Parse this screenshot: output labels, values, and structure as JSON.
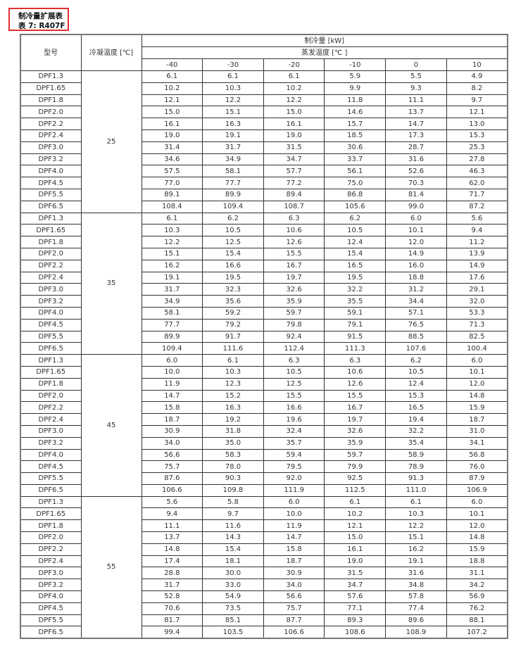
{
  "title": {
    "line1": "制冷量扩展表",
    "line2": "表 7: R407F"
  },
  "table": {
    "header": {
      "model": "型号",
      "condensing_temp": "冷凝温度 [℃]",
      "capacity": "制冷量 [kW]",
      "evaporating_temp": "蒸发温度 [℃ ]",
      "evap_columns": [
        "-40",
        "-30",
        "-20",
        "-10",
        "0",
        "10"
      ]
    },
    "groups": [
      {
        "condensing": "25",
        "rows": [
          {
            "model": "DPF1.3",
            "values": [
              "6.1",
              "6.1",
              "6.1",
              "5.9",
              "5.5",
              "4.9"
            ]
          },
          {
            "model": "DPF1.65",
            "values": [
              "10.2",
              "10.3",
              "10.2",
              "9.9",
              "9.3",
              "8.2"
            ]
          },
          {
            "model": "DPF1.8",
            "values": [
              "12.1",
              "12.2",
              "12.2",
              "11.8",
              "11.1",
              "9.7"
            ]
          },
          {
            "model": "DPF2.0",
            "values": [
              "15.0",
              "15.1",
              "15.0",
              "14.6",
              "13.7",
              "12.1"
            ]
          },
          {
            "model": "DPF2.2",
            "values": [
              "16.1",
              "16.3",
              "16.1",
              "15.7",
              "14.7",
              "13.0"
            ]
          },
          {
            "model": "DPF2.4",
            "values": [
              "19.0",
              "19.1",
              "19.0",
              "18.5",
              "17.3",
              "15.3"
            ]
          },
          {
            "model": "DPF3.0",
            "values": [
              "31.4",
              "31.7",
              "31.5",
              "30.6",
              "28.7",
              "25.3"
            ]
          },
          {
            "model": "DPF3.2",
            "values": [
              "34.6",
              "34.9",
              "34.7",
              "33.7",
              "31.6",
              "27.8"
            ]
          },
          {
            "model": "DPF4.0",
            "values": [
              "57.5",
              "58.1",
              "57.7",
              "56.1",
              "52.6",
              "46.3"
            ]
          },
          {
            "model": "DPF4.5",
            "values": [
              "77.0",
              "77.7",
              "77.2",
              "75.0",
              "70.3",
              "62.0"
            ]
          },
          {
            "model": "DPF5.5",
            "values": [
              "89.1",
              "89.9",
              "89.4",
              "86.8",
              "81.4",
              "71.7"
            ]
          },
          {
            "model": "DPF6.5",
            "values": [
              "108.4",
              "109.4",
              "108.7",
              "105.6",
              "99.0",
              "87.2"
            ]
          }
        ]
      },
      {
        "condensing": "35",
        "rows": [
          {
            "model": "DPF1.3",
            "values": [
              "6.1",
              "6.2",
              "6.3",
              "6.2",
              "6.0",
              "5.6"
            ]
          },
          {
            "model": "DPF1.65",
            "values": [
              "10.3",
              "10.5",
              "10.6",
              "10.5",
              "10.1",
              "9.4"
            ]
          },
          {
            "model": "DPF1.8",
            "values": [
              "12.2",
              "12.5",
              "12.6",
              "12.4",
              "12.0",
              "11.2"
            ]
          },
          {
            "model": "DPF2.0",
            "values": [
              "15.1",
              "15.4",
              "15.5",
              "15.4",
              "14.9",
              "13.9"
            ]
          },
          {
            "model": "DPF2.2",
            "values": [
              "16.2",
              "16.6",
              "16.7",
              "16.5",
              "16.0",
              "14.9"
            ]
          },
          {
            "model": "DPF2.4",
            "values": [
              "19.1",
              "19.5",
              "19.7",
              "19.5",
              "18.8",
              "17.6"
            ]
          },
          {
            "model": "DPF3.0",
            "values": [
              "31.7",
              "32.3",
              "32.6",
              "32.2",
              "31.2",
              "29.1"
            ]
          },
          {
            "model": "DPF3.2",
            "values": [
              "34.9",
              "35.6",
              "35.9",
              "35.5",
              "34.4",
              "32.0"
            ]
          },
          {
            "model": "DPF4.0",
            "values": [
              "58.1",
              "59.2",
              "59.7",
              "59.1",
              "57.1",
              "53.3"
            ]
          },
          {
            "model": "DPF4.5",
            "values": [
              "77.7",
              "79.2",
              "79.8",
              "79.1",
              "76.5",
              "71.3"
            ]
          },
          {
            "model": "DPF5.5",
            "values": [
              "89.9",
              "91.7",
              "92.4",
              "91.5",
              "88.5",
              "82.5"
            ]
          },
          {
            "model": "DPF6.5",
            "values": [
              "109.4",
              "111.6",
              "112.4",
              "111.3",
              "107.6",
              "100.4"
            ]
          }
        ]
      },
      {
        "condensing": "45",
        "rows": [
          {
            "model": "DPF1.3",
            "values": [
              "6.0",
              "6.1",
              "6.3",
              "6.3",
              "6.2",
              "6.0"
            ]
          },
          {
            "model": "DPF1.65",
            "values": [
              "10.0",
              "10.3",
              "10.5",
              "10.6",
              "10.5",
              "10.1"
            ]
          },
          {
            "model": "DPF1.8",
            "values": [
              "11.9",
              "12.3",
              "12.5",
              "12.6",
              "12.4",
              "12.0"
            ]
          },
          {
            "model": "DPF2.0",
            "values": [
              "14.7",
              "15.2",
              "15.5",
              "15.5",
              "15.3",
              "14.8"
            ]
          },
          {
            "model": "DPF2.2",
            "values": [
              "15.8",
              "16.3",
              "16.6",
              "16.7",
              "16.5",
              "15.9"
            ]
          },
          {
            "model": "DPF2.4",
            "values": [
              "18.7",
              "19.2",
              "19.6",
              "19.7",
              "19.4",
              "18.7"
            ]
          },
          {
            "model": "DPF3.0",
            "values": [
              "30.9",
              "31.8",
              "32.4",
              "32.6",
              "32.2",
              "31.0"
            ]
          },
          {
            "model": "DPF3.2",
            "values": [
              "34.0",
              "35.0",
              "35.7",
              "35.9",
              "35.4",
              "34.1"
            ]
          },
          {
            "model": "DPF4.0",
            "values": [
              "56.6",
              "58.3",
              "59.4",
              "59.7",
              "58.9",
              "56.8"
            ]
          },
          {
            "model": "DPF4.5",
            "values": [
              "75.7",
              "78.0",
              "79.5",
              "79.9",
              "78.9",
              "76.0"
            ]
          },
          {
            "model": "DPF5.5",
            "values": [
              "87.6",
              "90.3",
              "92.0",
              "92.5",
              "91.3",
              "87.9"
            ]
          },
          {
            "model": "DPF6.5",
            "values": [
              "106.6",
              "109.8",
              "111.9",
              "112.5",
              "111.0",
              "106.9"
            ]
          }
        ]
      },
      {
        "condensing": "55",
        "rows": [
          {
            "model": "DPF1.3",
            "values": [
              "5.6",
              "5.8",
              "6.0",
              "6.1",
              "6.1",
              "6.0"
            ]
          },
          {
            "model": "DPF1.65",
            "values": [
              "9.4",
              "9.7",
              "10.0",
              "10.2",
              "10.3",
              "10.1"
            ]
          },
          {
            "model": "DPF1.8",
            "values": [
              "11.1",
              "11.6",
              "11.9",
              "12.1",
              "12.2",
              "12.0"
            ]
          },
          {
            "model": "DPF2.0",
            "values": [
              "13.7",
              "14.3",
              "14.7",
              "15.0",
              "15.1",
              "14.8"
            ]
          },
          {
            "model": "DPF2.2",
            "values": [
              "14.8",
              "15.4",
              "15.8",
              "16.1",
              "16.2",
              "15.9"
            ]
          },
          {
            "model": "DPF2.4",
            "values": [
              "17.4",
              "18.1",
              "18.7",
              "19.0",
              "19.1",
              "18.8"
            ]
          },
          {
            "model": "DPF3.0",
            "values": [
              "28.8",
              "30.0",
              "30.9",
              "31.5",
              "31.6",
              "31.1"
            ]
          },
          {
            "model": "DPF3.2",
            "values": [
              "31.7",
              "33.0",
              "34.0",
              "34.7",
              "34.8",
              "34.2"
            ]
          },
          {
            "model": "DPF4.0",
            "values": [
              "52.8",
              "54.9",
              "56.6",
              "57.6",
              "57.8",
              "56.9"
            ]
          },
          {
            "model": "DPF4.5",
            "values": [
              "70.6",
              "73.5",
              "75.7",
              "77.1",
              "77.4",
              "76.2"
            ]
          },
          {
            "model": "DPF5.5",
            "values": [
              "81.7",
              "85.1",
              "87.7",
              "89.3",
              "89.6",
              "88.1"
            ]
          },
          {
            "model": "DPF6.5",
            "values": [
              "99.4",
              "103.5",
              "106.6",
              "108.6",
              "108.9",
              "107.2"
            ]
          }
        ]
      }
    ]
  },
  "colors": {
    "title_border": "#e03030",
    "grid": "#333333"
  }
}
